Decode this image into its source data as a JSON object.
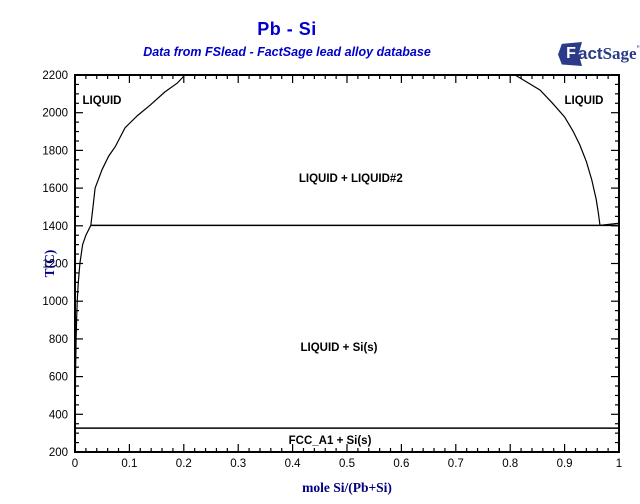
{
  "header": {
    "title": "Pb - Si",
    "subtitle": "Data from FSlead - FactSage lead alloy database"
  },
  "logo": {
    "f": "F",
    "act": "act",
    "sage": "Sage",
    "mark": "”"
  },
  "colors": {
    "accent": "#0000CC",
    "axis_title": "#000080",
    "line": "#000000",
    "logo": "#2B3B87",
    "background": "#FFFFFF"
  },
  "chart_data": {
    "type": "line",
    "title": "Pb - Si",
    "subtitle": "Data from FSlead - FactSage lead alloy database",
    "xlabel": "mole Si/(Pb+Si)",
    "ylabel": "T(C)",
    "xlim": [
      0,
      1
    ],
    "ylim": [
      200,
      2200
    ],
    "grid": false,
    "legend": false,
    "x_major_ticks": [
      0,
      0.1,
      0.2,
      0.3,
      0.4,
      0.5,
      0.6,
      0.7,
      0.8,
      0.9,
      1
    ],
    "x_tick_labels": [
      "0",
      "0.1",
      "0.2",
      "0.3",
      "0.4",
      "0.5",
      "0.6",
      "0.7",
      "0.8",
      "0.9",
      "1"
    ],
    "x_minor_step": 0.02,
    "y_major_ticks": [
      200,
      400,
      600,
      800,
      1000,
      1200,
      1400,
      1600,
      1800,
      2000,
      2200
    ],
    "y_tick_labels": [
      "200",
      "400",
      "600",
      "800",
      "1000",
      "1200",
      "1400",
      "1600",
      "1800",
      "2000",
      "2200"
    ],
    "y_minor_step": 50,
    "series": [
      {
        "name": "Pb-rich liquidus and left miscibility-gap boundary",
        "role": "boundary",
        "points": [
          [
            0.0002,
            330
          ],
          [
            0.0004,
            400
          ],
          [
            0.0007,
            500
          ],
          [
            0.001,
            600
          ],
          [
            0.0015,
            700
          ],
          [
            0.002,
            800
          ],
          [
            0.003,
            900
          ],
          [
            0.004,
            1000
          ],
          [
            0.006,
            1100
          ],
          [
            0.009,
            1200
          ],
          [
            0.014,
            1300
          ],
          [
            0.02,
            1350
          ],
          [
            0.029,
            1402
          ],
          [
            0.033,
            1500
          ],
          [
            0.037,
            1600
          ],
          [
            0.05,
            1700
          ],
          [
            0.062,
            1770
          ],
          [
            0.074,
            1820
          ],
          [
            0.092,
            1920
          ],
          [
            0.115,
            1985
          ],
          [
            0.138,
            2040
          ],
          [
            0.165,
            2110
          ],
          [
            0.188,
            2157
          ],
          [
            0.202,
            2200
          ]
        ]
      },
      {
        "name": "right miscibility-gap boundary",
        "role": "boundary",
        "points": [
          [
            0.809,
            2200
          ],
          [
            0.835,
            2155
          ],
          [
            0.855,
            2120
          ],
          [
            0.878,
            2050
          ],
          [
            0.9,
            1977
          ],
          [
            0.916,
            1900
          ],
          [
            0.928,
            1829
          ],
          [
            0.94,
            1740
          ],
          [
            0.95,
            1643
          ],
          [
            0.958,
            1540
          ],
          [
            0.962,
            1470
          ],
          [
            0.965,
            1402
          ]
        ]
      },
      {
        "name": "Si liquidus",
        "role": "boundary",
        "points": [
          [
            0.965,
            1402
          ],
          [
            1,
            1414
          ]
        ]
      },
      {
        "name": "monotectic isotherm 1402 C",
        "role": "isotherm",
        "points": [
          [
            0.029,
            1402
          ],
          [
            1,
            1402
          ]
        ]
      },
      {
        "name": "eutectic isotherm 327 C",
        "role": "isotherm",
        "points": [
          [
            0,
            327
          ],
          [
            1,
            327
          ]
        ]
      }
    ],
    "annotations": [
      {
        "text": "LIQUID",
        "x": 0.0496,
        "y": 2067
      },
      {
        "text": "LIQUID",
        "x": 0.9357,
        "y": 2067
      },
      {
        "text": "LIQUID + LIQUID#2",
        "x": 0.507,
        "y": 1654
      },
      {
        "text": "LIQUID + Si(s)",
        "x": 0.4853,
        "y": 757
      },
      {
        "text": "FCC_A1 + Si(s)",
        "x": 0.4688,
        "y": 264
      }
    ]
  }
}
